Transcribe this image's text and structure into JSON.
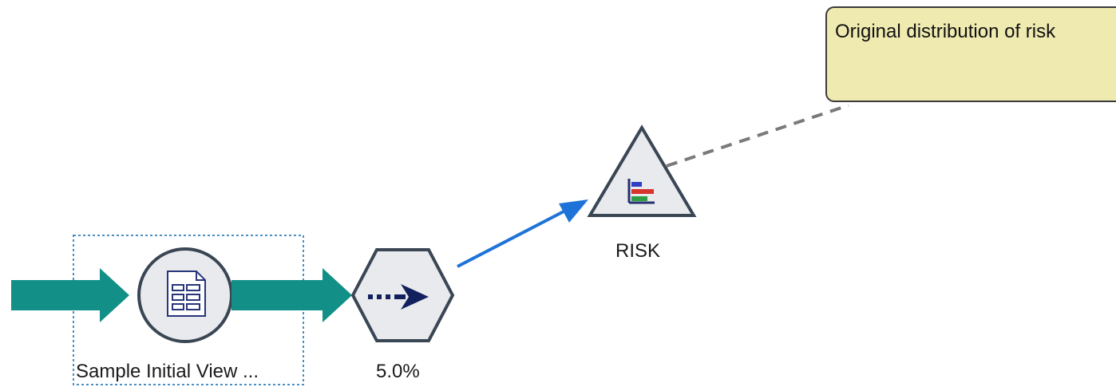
{
  "canvas": {
    "background": "#ffffff"
  },
  "nodes": {
    "source": {
      "label": "Sample Initial View ...",
      "icon": "document-table-icon",
      "shape": "circle"
    },
    "sample": {
      "label": "5.0%",
      "icon": "dotted-arrow-right-icon",
      "shape": "hexagon"
    },
    "distribution": {
      "label": "RISK",
      "icon": "bar-chart-icon",
      "shape": "triangle"
    }
  },
  "comment": {
    "text": "Original distribution of risk",
    "fill": "#efeab0"
  },
  "colors": {
    "stream_arrow": "#128f86",
    "connector": "#1e73d8",
    "node_fill": "#e8eaed",
    "node_stroke": "#3a4654",
    "selection_box": "#4a8fc4",
    "comment_link": "#7a7a7a"
  }
}
